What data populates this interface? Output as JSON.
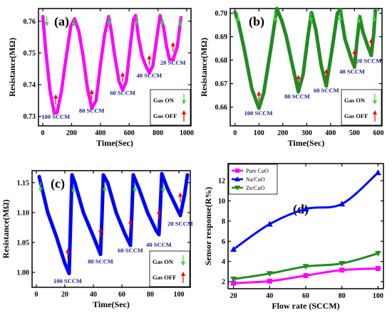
{
  "chart_data": [
    {
      "panel": "(a)",
      "type": "line",
      "xlabel": "Time(Sec)",
      "ylabel": "Resistance(MΩ)",
      "xlim": [
        -30,
        1030
      ],
      "ylim": [
        0.727,
        0.764
      ],
      "xticks": [
        0,
        200,
        400,
        600,
        800,
        1000
      ],
      "yticks": [
        0.73,
        0.74,
        0.75,
        0.76
      ],
      "ytick_labels": [
        "0.73",
        "0.74",
        "0.75",
        "0.76"
      ],
      "color": "#ff00ff",
      "series": [
        {
          "values": [
            [
              0,
              0.7615
            ],
            [
              20,
              0.751
            ],
            [
              50,
              0.738
            ],
            [
              80,
              0.731
            ],
            [
              100,
              0.7312
            ],
            [
              130,
              0.738
            ],
            [
              160,
              0.748
            ],
            [
              195,
              0.7585
            ],
            [
              220,
              0.7608
            ],
            [
              250,
              0.757
            ],
            [
              280,
              0.749
            ],
            [
              310,
              0.739
            ],
            [
              340,
              0.7325
            ],
            [
              370,
              0.735
            ],
            [
              400,
              0.746
            ],
            [
              430,
              0.756
            ],
            [
              458,
              0.7615
            ],
            [
              475,
              0.757
            ],
            [
              500,
              0.749
            ],
            [
              530,
              0.741
            ],
            [
              555,
              0.7383
            ],
            [
              580,
              0.741
            ],
            [
              605,
              0.751
            ],
            [
              630,
              0.7605
            ],
            [
              645,
              0.7618
            ],
            [
              665,
              0.755
            ],
            [
              690,
              0.749
            ],
            [
              715,
              0.746
            ],
            [
              740,
              0.7437
            ],
            [
              765,
              0.746
            ],
            [
              790,
              0.754
            ],
            [
              815,
              0.7618
            ],
            [
              840,
              0.758
            ],
            [
              860,
              0.752
            ],
            [
              880,
              0.748
            ],
            [
              905,
              0.7478
            ],
            [
              935,
              0.752
            ],
            [
              960,
              0.7612
            ]
          ]
        }
      ],
      "annotations": [
        {
          "text": "100 SCCM",
          "x": 90,
          "y": 0.7292
        },
        {
          "text": "80 SCCM",
          "x": 340,
          "y": 0.7311
        },
        {
          "text": "60 SCCM",
          "x": 555,
          "y": 0.7368
        },
        {
          "text": "40 SCCM",
          "x": 740,
          "y": 0.7422
        },
        {
          "text": "20 SCCM",
          "x": 905,
          "y": 0.7463
        }
      ],
      "down_arrows": [
        [
          28,
          0.7615
        ],
        [
          215,
          0.7613
        ],
        [
          462,
          0.7617
        ],
        [
          650,
          0.7618
        ],
        [
          828,
          0.7617
        ],
        [
          955,
          0.7613
        ]
      ],
      "up_arrows": [
        [
          90,
          0.7338
        ],
        [
          340,
          0.7353
        ],
        [
          555,
          0.7408
        ],
        [
          740,
          0.7462
        ],
        [
          905,
          0.7503
        ]
      ],
      "legend": {
        "gas_on": "Gas ON",
        "gas_off": "Gas OFF"
      }
    },
    {
      "panel": "(b)",
      "type": "line",
      "xlabel": "Time(Sec)",
      "ylabel": "Resistance(MΩ)",
      "xlim": [
        -20,
        615
      ],
      "ylim": [
        0.652,
        0.702
      ],
      "xticks": [
        0,
        100,
        200,
        300,
        400,
        500,
        600
      ],
      "yticks": [
        0.66,
        0.67,
        0.68,
        0.69,
        0.7
      ],
      "ytick_labels": [
        "0.66",
        "0.67",
        "0.68",
        "0.69",
        "0.70"
      ],
      "color": "#228b22",
      "series": [
        {
          "values": [
            [
              0,
              0.7005
            ],
            [
              15,
              0.696
            ],
            [
              40,
              0.684
            ],
            [
              70,
              0.668
            ],
            [
              100,
              0.6595
            ],
            [
              120,
              0.666
            ],
            [
              150,
              0.685
            ],
            [
              175,
              0.702
            ],
            [
              195,
              0.697
            ],
            [
              215,
              0.69
            ],
            [
              240,
              0.678
            ],
            [
              265,
              0.6665
            ],
            [
              285,
              0.674
            ],
            [
              305,
              0.69
            ],
            [
              320,
              0.7003
            ],
            [
              338,
              0.693
            ],
            [
              360,
              0.678
            ],
            [
              382,
              0.669
            ],
            [
              405,
              0.684
            ],
            [
              428,
              0.7
            ],
            [
              440,
              0.7015
            ],
            [
              460,
              0.689
            ],
            [
              485,
              0.681
            ],
            [
              500,
              0.677
            ],
            [
              510,
              0.688
            ],
            [
              522,
              0.6985
            ],
            [
              535,
              0.692
            ],
            [
              555,
              0.686
            ],
            [
              570,
              0.682
            ],
            [
              580,
              0.691
            ],
            [
              587,
              0.701
            ]
          ]
        }
      ],
      "annotations": [
        {
          "text": "100 SCCM",
          "x": 98,
          "y": 0.6565
        },
        {
          "text": "80 SCCM",
          "x": 260,
          "y": 0.6637
        },
        {
          "text": "60 SCCM",
          "x": 382,
          "y": 0.6662
        },
        {
          "text": "40 SCCM",
          "x": 490,
          "y": 0.6742
        },
        {
          "text": "20 SCCM",
          "x": 560,
          "y": 0.6788
        }
      ],
      "down_arrows": [
        [
          12,
          0.7002
        ],
        [
          168,
          0.7005
        ],
        [
          318,
          0.7003
        ],
        [
          440,
          0.7005
        ],
        [
          518,
          0.6998
        ],
        [
          582,
          0.7003
        ]
      ],
      "up_arrows": [
        [
          100,
          0.6625
        ],
        [
          265,
          0.6695
        ],
        [
          382,
          0.672
        ],
        [
          500,
          0.6802
        ],
        [
          570,
          0.685
        ]
      ],
      "legend": {
        "gas_on": "Gas ON",
        "gas_off": "Gas OFF"
      }
    },
    {
      "panel": "(c)",
      "type": "line",
      "xlabel": "Time(Sec)",
      "ylabel": "Resistance(MΩ)",
      "xlim": [
        -3,
        108
      ],
      "ylim": [
        0.975,
        1.17
      ],
      "xticks": [
        0,
        20,
        40,
        60,
        80,
        100
      ],
      "yticks": [
        1.0,
        1.05,
        1.1,
        1.15
      ],
      "ytick_labels": [
        "1.00",
        "1.05",
        "1.10",
        "1.15"
      ],
      "color": "#0000ff",
      "series": [
        {
          "values": [
            [
              2,
              1.16
            ],
            [
              4,
              1.14
            ],
            [
              8,
              1.1
            ],
            [
              14,
              1.06
            ],
            [
              20,
              1.015
            ],
            [
              23,
              0.998
            ],
            [
              24,
              1.08
            ],
            [
              25,
              1.163
            ],
            [
              27,
              1.15
            ],
            [
              33,
              1.1
            ],
            [
              40,
              1.06
            ],
            [
              45,
              1.03
            ],
            [
              46,
              1.09
            ],
            [
              47,
              1.163
            ],
            [
              50,
              1.15
            ],
            [
              56,
              1.1
            ],
            [
              62,
              1.065
            ],
            [
              66,
              1.045
            ],
            [
              67,
              1.1
            ],
            [
              68,
              1.163
            ],
            [
              72,
              1.14
            ],
            [
              78,
              1.1
            ],
            [
              84,
              1.07
            ],
            [
              86,
              1.063
            ],
            [
              87,
              1.11
            ],
            [
              88,
              1.165
            ],
            [
              92,
              1.14
            ],
            [
              98,
              1.11
            ],
            [
              101,
              1.095
            ],
            [
              104,
              1.13
            ],
            [
              106,
              1.163
            ]
          ]
        }
      ],
      "annotations": [
        {
          "text": "100 SCCM",
          "x": 22,
          "y": 0.982
        },
        {
          "text": "80 SCCM",
          "x": 45,
          "y": 1.015
        },
        {
          "text": "60 SCCM",
          "x": 66,
          "y": 1.033
        },
        {
          "text": "40 SCCM",
          "x": 86,
          "y": 1.043
        },
        {
          "text": "20 SCCM",
          "x": 101,
          "y": 1.078
        }
      ],
      "down_arrows": [
        [
          3,
          1.151
        ],
        [
          26,
          1.148
        ],
        [
          48,
          1.15
        ],
        [
          69,
          1.15
        ],
        [
          89,
          1.15
        ]
      ],
      "up_arrows": [
        [
          22,
          1.023
        ],
        [
          45,
          1.058
        ],
        [
          66,
          1.072
        ],
        [
          86,
          1.088
        ],
        [
          101,
          1.117
        ]
      ],
      "legend": {
        "gas_on": "Gas ON",
        "gas_off": "Gas OFF"
      }
    },
    {
      "panel": "(d)",
      "type": "line",
      "xlabel": "Flow rate (SCCM)",
      "ylabel": "Sensor response(R%)",
      "xlim": [
        17,
        103
      ],
      "ylim": [
        1.3,
        13.7
      ],
      "xticks": [
        20,
        40,
        60,
        80,
        100
      ],
      "yticks": [
        2,
        4,
        6,
        8,
        10,
        12
      ],
      "ytick_labels": [
        "2",
        "4",
        "6",
        "8",
        "10",
        "12"
      ],
      "categories": [
        20,
        40,
        60,
        80,
        100
      ],
      "series": [
        {
          "name": "Pure CuO",
          "color": "#ff00ff",
          "marker": "square",
          "values": [
            1.85,
            2.05,
            2.6,
            3.15,
            3.3
          ]
        },
        {
          "name": "Na/CuO",
          "color": "#0000ff",
          "marker": "triangle-up",
          "values": [
            5.2,
            7.7,
            9.2,
            9.7,
            12.8
          ]
        },
        {
          "name": "Zn/CuO",
          "color": "#228b22",
          "marker": "triangle-down",
          "values": [
            2.25,
            2.8,
            3.5,
            3.8,
            4.8
          ]
        }
      ],
      "legend_position": "top-left"
    }
  ]
}
